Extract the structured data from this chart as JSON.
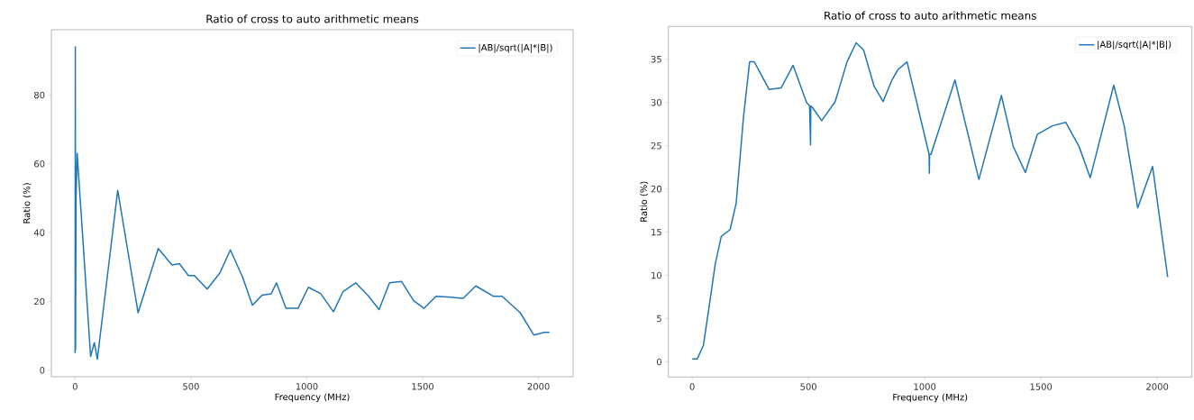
{
  "chart_data": [
    {
      "type": "line",
      "title": "Ratio of cross to auto arithmetic means",
      "xlabel": "Frequency (MHz)",
      "ylabel": "Ratio (%)",
      "xlim": [
        -102.35,
        2149.35
      ],
      "ylim": [
        -1.9,
        99
      ],
      "xticks": [
        0,
        500,
        1000,
        1500,
        2000
      ],
      "yticks": [
        0,
        20,
        40,
        60,
        80
      ],
      "legend": "top right",
      "series": [
        {
          "name": "|AB|/sqrt(|A|*|B|)",
          "color": "#1f77b4",
          "x": [
            0,
            1,
            2,
            4,
            9,
            67,
            83,
            96,
            184,
            272,
            359,
            418,
            450,
            489,
            515,
            570,
            625,
            670,
            722,
            765,
            807,
            846,
            869,
            910,
            962,
            1007,
            1059,
            1115,
            1156,
            1211,
            1267,
            1312,
            1357,
            1409,
            1461,
            1506,
            1558,
            1623,
            1675,
            1729,
            1805,
            1843,
            1921,
            1980,
            2025,
            2047
          ],
          "values": [
            5,
            94,
            6,
            50,
            63,
            4,
            8,
            3.2,
            52.3,
            16.7,
            35.4,
            30.6,
            31,
            27.5,
            27.5,
            23.6,
            28.3,
            35,
            27.2,
            18.9,
            21.8,
            22.2,
            25.4,
            18,
            18,
            24.1,
            22.3,
            17,
            22.8,
            25.4,
            21.5,
            17.6,
            25.4,
            25.8,
            20.2,
            18,
            21.5,
            21.2,
            20.9,
            24.5,
            21.5,
            21.5,
            16.7,
            10.2,
            11,
            11
          ]
        }
      ]
    },
    {
      "type": "line",
      "title": "Ratio of cross to auto arithmetic means",
      "xlabel": "Frequency (MHz)",
      "ylabel": "Ratio (%)",
      "xlim": [
        -102.35,
        2149.35
      ],
      "ylim": [
        -1.75,
        38.8
      ],
      "xticks": [
        0,
        500,
        1000,
        1500,
        2000
      ],
      "yticks": [
        0,
        5,
        10,
        15,
        20,
        25,
        30,
        35
      ],
      "legend": "top right",
      "series": [
        {
          "name": "|AB|/sqrt(|A|*|B|)",
          "color": "#1f77b4",
          "x": [
            0,
            22,
            48,
            73,
            99,
            125,
            163,
            189,
            221,
            247,
            267,
            331,
            383,
            434,
            492,
            505,
            509,
            510,
            518,
            557,
            615,
            666,
            705,
            737,
            782,
            821,
            859,
            885,
            924,
            1019,
            1020,
            1021,
            1027,
            1130,
            1233,
            1330,
            1381,
            1433,
            1484,
            1549,
            1607,
            1664,
            1712,
            1813,
            1858,
            1916,
            1980,
            2045
          ],
          "values": [
            0.35,
            0.35,
            1.9,
            6.4,
            11.3,
            14.5,
            15.3,
            18.3,
            28.4,
            34.7,
            34.7,
            31.5,
            31.7,
            34.3,
            30,
            29.6,
            25.1,
            29.6,
            29.4,
            27.9,
            30.1,
            34.7,
            36.9,
            36.1,
            31.9,
            30.1,
            32.6,
            33.8,
            34.7,
            24,
            21.8,
            24,
            24,
            32.6,
            21.1,
            30.8,
            24.9,
            21.9,
            26.3,
            27.3,
            27.7,
            24.9,
            21.3,
            32,
            27.3,
            17.8,
            22.6,
            9.8
          ]
        }
      ]
    }
  ]
}
